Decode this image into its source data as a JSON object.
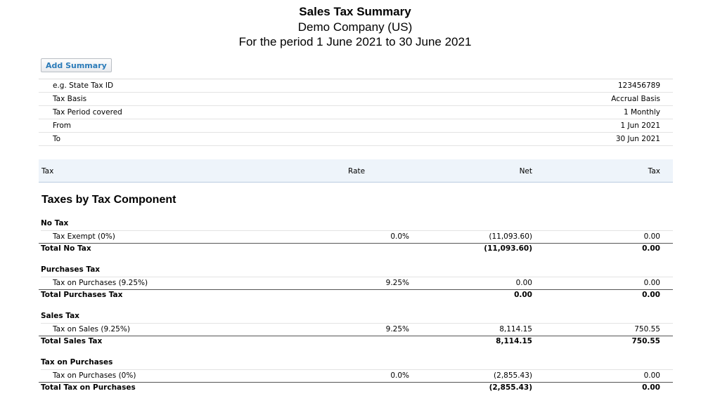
{
  "report": {
    "title": "Sales Tax Summary",
    "company": "Demo Company (US)",
    "period": "For the period 1 June 2021 to 30 June 2021"
  },
  "toolbar": {
    "add_summary_label": "Add Summary"
  },
  "info": [
    {
      "label": "e.g. State Tax ID",
      "value": "123456789"
    },
    {
      "label": "Tax Basis",
      "value": "Accrual Basis"
    },
    {
      "label": "Tax Period covered",
      "value": "1 Monthly"
    },
    {
      "label": "From",
      "value": "1 Jun 2021"
    },
    {
      "label": "To",
      "value": "30 Jun 2021"
    }
  ],
  "columns": {
    "tax": "Tax",
    "rate": "Rate",
    "net": "Net",
    "amount": "Tax"
  },
  "section_title": "Taxes by Tax Component",
  "groups": [
    {
      "name": "No Tax",
      "line": {
        "name": "Tax Exempt (0%)",
        "rate": "0.0%",
        "net": "(11,093.60)",
        "tax": "0.00"
      },
      "total": {
        "label": "Total No Tax",
        "net": "(11,093.60)",
        "tax": "0.00"
      }
    },
    {
      "name": "Purchases Tax",
      "line": {
        "name": "Tax on Purchases (9.25%)",
        "rate": "9.25%",
        "net": "0.00",
        "tax": "0.00"
      },
      "total": {
        "label": "Total Purchases Tax",
        "net": "0.00",
        "tax": "0.00"
      }
    },
    {
      "name": "Sales Tax",
      "line": {
        "name": "Tax on Sales (9.25%)",
        "rate": "9.25%",
        "net": "8,114.15",
        "tax": "750.55"
      },
      "total": {
        "label": "Total Sales Tax",
        "net": "8,114.15",
        "tax": "750.55"
      }
    },
    {
      "name": "Tax on Purchases",
      "line": {
        "name": "Tax on Purchases (0%)",
        "rate": "0.0%",
        "net": "(2,855.43)",
        "tax": "0.00"
      },
      "total": {
        "label": "Total Tax on Purchases",
        "net": "(2,855.43)",
        "tax": "0.00"
      }
    }
  ]
}
